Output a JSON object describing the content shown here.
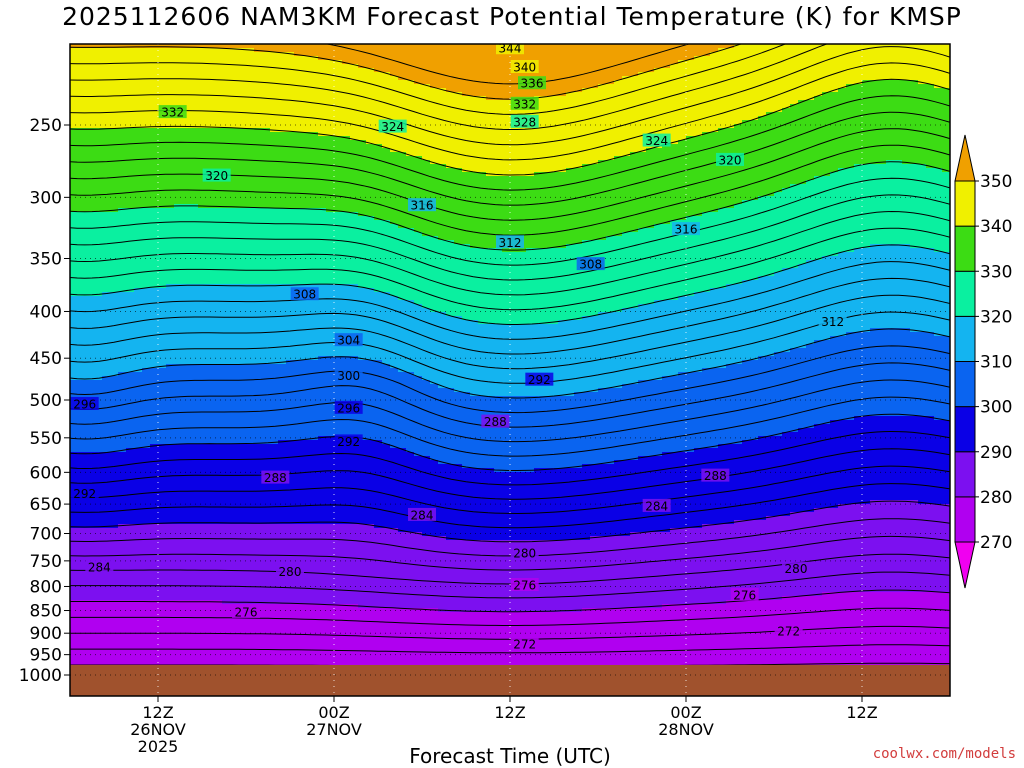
{
  "title": "2025112606 NAM3KM Forecast Potential Temperature (K) for KMSP",
  "xlabel": "Forecast Time (UTC)",
  "credit": "coolwx.com/models",
  "chart_data": {
    "type": "heatmap",
    "title": "2025112606 NAM3KM Forecast Potential Temperature (K) for KMSP",
    "xlabel": "Forecast Time (UTC)",
    "ylabel": "",
    "x_axis": {
      "unit": "forecast hour",
      "range": [
        0,
        60
      ],
      "ticks": [
        {
          "hour": 6,
          "lines": [
            "12Z",
            "26NOV",
            "2025"
          ]
        },
        {
          "hour": 18,
          "lines": [
            "00Z",
            "27NOV"
          ]
        },
        {
          "hour": 30,
          "lines": [
            "12Z"
          ]
        },
        {
          "hour": 42,
          "lines": [
            "00Z",
            "28NOV"
          ]
        },
        {
          "hour": 54,
          "lines": [
            "12Z"
          ]
        }
      ]
    },
    "y_axis": {
      "unit": "hPa",
      "scale": "log",
      "range": [
        1050,
        200
      ],
      "ticks": [
        250,
        300,
        350,
        400,
        450,
        500,
        550,
        600,
        650,
        700,
        750,
        800,
        850,
        900,
        950,
        1000
      ]
    },
    "colorbar": {
      "levels": [
        270,
        280,
        290,
        300,
        310,
        320,
        330,
        340,
        350
      ],
      "colors": [
        "#f000f0",
        "#b000f0",
        "#7c10f0",
        "#0a00e6",
        "#0a64f0",
        "#14b4f0",
        "#0af0a0",
        "#3cdc14",
        "#f0f000",
        "#f0a000"
      ],
      "labels": [
        "270",
        "280",
        "290",
        "300",
        "310",
        "320",
        "330",
        "340",
        "350"
      ]
    },
    "contour_interval": 2,
    "contour_labels": [
      {
        "text": "344",
        "hour": 30,
        "p": 206
      },
      {
        "text": "340",
        "hour": 31,
        "p": 216
      },
      {
        "text": "336",
        "hour": 31.5,
        "p": 225
      },
      {
        "text": "332",
        "hour": 31,
        "p": 237
      },
      {
        "text": "328",
        "hour": 31,
        "p": 248
      },
      {
        "text": "332",
        "hour": 7,
        "p": 242
      },
      {
        "text": "324",
        "hour": 22,
        "p": 251
      },
      {
        "text": "324",
        "hour": 40,
        "p": 260
      },
      {
        "text": "320",
        "hour": 10,
        "p": 284
      },
      {
        "text": "320",
        "hour": 45,
        "p": 273
      },
      {
        "text": "316",
        "hour": 24,
        "p": 306
      },
      {
        "text": "316",
        "hour": 42,
        "p": 325
      },
      {
        "text": "312",
        "hour": 30,
        "p": 336
      },
      {
        "text": "308",
        "hour": 35.5,
        "p": 355
      },
      {
        "text": "312",
        "hour": 52,
        "p": 410
      },
      {
        "text": "308",
        "hour": 16,
        "p": 383
      },
      {
        "text": "304",
        "hour": 19,
        "p": 430
      },
      {
        "text": "300",
        "hour": 19,
        "p": 470
      },
      {
        "text": "296",
        "hour": 19,
        "p": 510
      },
      {
        "text": "292",
        "hour": 19,
        "p": 555
      },
      {
        "text": "292",
        "hour": 32,
        "p": 475
      },
      {
        "text": "288",
        "hour": 29,
        "p": 528
      },
      {
        "text": "288",
        "hour": 14,
        "p": 608
      },
      {
        "text": "288",
        "hour": 44,
        "p": 605
      },
      {
        "text": "284",
        "hour": 24,
        "p": 668
      },
      {
        "text": "284",
        "hour": 40,
        "p": 653
      },
      {
        "text": "296",
        "hour": 1,
        "p": 505
      },
      {
        "text": "292",
        "hour": 1,
        "p": 633
      },
      {
        "text": "284",
        "hour": 2,
        "p": 762
      },
      {
        "text": "280",
        "hour": 15,
        "p": 770
      },
      {
        "text": "280",
        "hour": 31,
        "p": 735
      },
      {
        "text": "280",
        "hour": 49.5,
        "p": 765
      },
      {
        "text": "276",
        "hour": 12,
        "p": 853
      },
      {
        "text": "276",
        "hour": 31,
        "p": 797
      },
      {
        "text": "276",
        "hour": 46,
        "p": 817
      },
      {
        "text": "272",
        "hour": 31,
        "p": 925
      },
      {
        "text": "272",
        "hour": 49,
        "p": 895
      }
    ],
    "ground_pressure_hPa": 975
  }
}
